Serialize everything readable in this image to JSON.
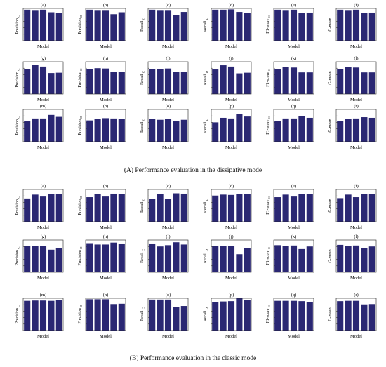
{
  "captions": {
    "A": "(A) Performance evaluation in  the dissipative mode",
    "B": "(B) Performance evaluation in the classic mode"
  },
  "bar_color": "#2a2773",
  "chart_data": [
    {
      "group": "A",
      "title": "(a)",
      "type": "bar",
      "xlabel": "Model",
      "ylabel": "Precision",
      "ylabel_sub": "C",
      "ylim": [
        0,
        1
      ],
      "values": [
        0.96,
        0.95,
        0.96,
        0.88,
        0.86
      ]
    },
    {
      "group": "A",
      "title": "(b)",
      "type": "bar",
      "xlabel": "Model",
      "ylabel": "Precision",
      "ylabel_sub": "D",
      "ylim": [
        0,
        1
      ],
      "values": [
        0.96,
        0.95,
        0.95,
        0.82,
        0.88
      ]
    },
    {
      "group": "A",
      "title": "(c)",
      "type": "bar",
      "xlabel": "Model",
      "ylabel": "Recall",
      "ylabel_sub": "C",
      "ylim": [
        0,
        1
      ],
      "values": [
        0.96,
        0.95,
        0.95,
        0.8,
        0.89
      ]
    },
    {
      "group": "A",
      "title": "(d)",
      "type": "bar",
      "xlabel": "Model",
      "ylabel": "Recall",
      "ylabel_sub": "D",
      "ylim": [
        0,
        1
      ],
      "values": [
        0.96,
        0.96,
        0.97,
        0.89,
        0.86
      ]
    },
    {
      "group": "A",
      "title": "(e)",
      "type": "bar",
      "xlabel": "Model",
      "ylabel": "F1-score",
      "ylabel_sub": "C",
      "ylim": [
        0,
        1
      ],
      "values": [
        0.96,
        0.95,
        0.96,
        0.85,
        0.87
      ]
    },
    {
      "group": "A",
      "title": "(f)",
      "type": "bar",
      "xlabel": "Model",
      "ylabel": "G-mean",
      "ylabel_sub": "",
      "ylim": [
        0,
        1
      ],
      "values": [
        0.96,
        0.95,
        0.96,
        0.85,
        0.87
      ]
    },
    {
      "group": "A",
      "title": "(g)",
      "type": "bar",
      "xlabel": "Model",
      "ylabel": "Precision",
      "ylabel_sub": "C",
      "ylim": [
        0,
        1
      ],
      "values": [
        0.78,
        0.9,
        0.85,
        0.65,
        0.66
      ]
    },
    {
      "group": "A",
      "title": "(h)",
      "type": "bar",
      "xlabel": "Model",
      "ylabel": "Precision",
      "ylabel_sub": "D",
      "ylim": [
        0,
        1
      ],
      "values": [
        0.78,
        0.8,
        0.79,
        0.69,
        0.68
      ]
    },
    {
      "group": "A",
      "title": "(i)",
      "type": "bar",
      "xlabel": "Model",
      "ylabel": "Recall",
      "ylabel_sub": "C",
      "ylim": [
        0,
        1
      ],
      "values": [
        0.78,
        0.78,
        0.79,
        0.68,
        0.68
      ]
    },
    {
      "group": "A",
      "title": "(j)",
      "type": "bar",
      "xlabel": "Model",
      "ylabel": "Recall",
      "ylabel_sub": "D",
      "ylim": [
        0,
        1
      ],
      "values": [
        0.76,
        0.89,
        0.85,
        0.64,
        0.66
      ]
    },
    {
      "group": "A",
      "title": "(k)",
      "type": "bar",
      "xlabel": "Model",
      "ylabel": "F1-score",
      "ylabel_sub": "C",
      "ylim": [
        0,
        1
      ],
      "values": [
        0.77,
        0.84,
        0.82,
        0.67,
        0.67
      ]
    },
    {
      "group": "A",
      "title": "(l)",
      "type": "bar",
      "xlabel": "Model",
      "ylabel": "G-mean",
      "ylabel_sub": "",
      "ylim": [
        0,
        1
      ],
      "values": [
        0.77,
        0.84,
        0.82,
        0.67,
        0.67
      ]
    },
    {
      "group": "A",
      "title": "(m)",
      "type": "bar",
      "xlabel": "Model",
      "ylabel": "Precision",
      "ylabel_sub": "C",
      "ylim": [
        0,
        1
      ],
      "values": [
        0.63,
        0.72,
        0.72,
        0.83,
        0.77
      ]
    },
    {
      "group": "A",
      "title": "(n)",
      "type": "bar",
      "xlabel": "Model",
      "ylabel": "Precision",
      "ylabel_sub": "D",
      "ylim": [
        0,
        1
      ],
      "values": [
        0.66,
        0.71,
        0.73,
        0.72,
        0.71
      ]
    },
    {
      "group": "A",
      "title": "(o)",
      "type": "bar",
      "xlabel": "Model",
      "ylabel": "Recall",
      "ylabel_sub": "C",
      "ylim": [
        0,
        1
      ],
      "values": [
        0.7,
        0.68,
        0.7,
        0.63,
        0.68
      ]
    },
    {
      "group": "A",
      "title": "(p)",
      "type": "bar",
      "xlabel": "Model",
      "ylabel": "Recall",
      "ylabel_sub": "D",
      "ylim": [
        0,
        1
      ],
      "values": [
        0.6,
        0.74,
        0.72,
        0.86,
        0.78
      ]
    },
    {
      "group": "A",
      "title": "(q)",
      "type": "bar",
      "xlabel": "Model",
      "ylabel": "F1-score",
      "ylabel_sub": "C",
      "ylim": [
        0,
        1
      ],
      "values": [
        0.64,
        0.72,
        0.72,
        0.8,
        0.74
      ]
    },
    {
      "group": "A",
      "title": "(r)",
      "type": "bar",
      "xlabel": "Model",
      "ylabel": "G-mean",
      "ylabel_sub": "",
      "ylim": [
        0,
        1
      ],
      "values": [
        0.64,
        0.71,
        0.72,
        0.76,
        0.74
      ]
    },
    {
      "group": "B",
      "title": "(a)",
      "type": "bar",
      "xlabel": "Model",
      "ylabel": "Precision",
      "ylabel_sub": "C",
      "ylim": [
        0,
        1
      ],
      "values": [
        0.72,
        0.84,
        0.78,
        0.85,
        0.86
      ]
    },
    {
      "group": "B",
      "title": "(b)",
      "type": "bar",
      "xlabel": "Model",
      "ylabel": "Precision",
      "ylabel_sub": "D",
      "ylim": [
        0,
        1
      ],
      "values": [
        0.76,
        0.85,
        0.78,
        0.87,
        0.86
      ]
    },
    {
      "group": "B",
      "title": "(c)",
      "type": "bar",
      "xlabel": "Model",
      "ylabel": "Recall",
      "ylabel_sub": "C",
      "ylim": [
        0,
        1
      ],
      "values": [
        0.7,
        0.85,
        0.7,
        0.88,
        0.87
      ]
    },
    {
      "group": "B",
      "title": "(d)",
      "type": "bar",
      "xlabel": "Model",
      "ylabel": "Recall",
      "ylabel_sub": "D",
      "ylim": [
        0,
        1
      ],
      "values": [
        0.81,
        0.84,
        0.83,
        0.85,
        0.86
      ]
    },
    {
      "group": "B",
      "title": "(e)",
      "type": "bar",
      "xlabel": "Model",
      "ylabel": "F1-score",
      "ylabel_sub": "C",
      "ylim": [
        0,
        1
      ],
      "values": [
        0.76,
        0.84,
        0.78,
        0.86,
        0.86
      ]
    },
    {
      "group": "B",
      "title": "(f)",
      "type": "bar",
      "xlabel": "Model",
      "ylabel": "G-mean",
      "ylabel_sub": "",
      "ylim": [
        0,
        1
      ],
      "values": [
        0.73,
        0.84,
        0.76,
        0.86,
        0.86
      ]
    },
    {
      "group": "B",
      "title": "(g)",
      "type": "bar",
      "xlabel": "Model",
      "ylabel": "Precision",
      "ylabel_sub": "C",
      "ylim": [
        0,
        1
      ],
      "values": [
        0.82,
        0.81,
        0.82,
        0.7,
        0.76
      ]
    },
    {
      "group": "B",
      "title": "(h)",
      "type": "bar",
      "xlabel": "Model",
      "ylabel": "Precision",
      "ylabel_sub": "D",
      "ylim": [
        0,
        1
      ],
      "values": [
        0.88,
        0.86,
        0.86,
        0.92,
        0.87
      ]
    },
    {
      "group": "B",
      "title": "(i)",
      "type": "bar",
      "xlabel": "Model",
      "ylabel": "Recall",
      "ylabel_sub": "C",
      "ylim": [
        0,
        1
      ],
      "values": [
        0.87,
        0.8,
        0.84,
        0.93,
        0.86
      ]
    },
    {
      "group": "B",
      "title": "(j)",
      "type": "bar",
      "xlabel": "Model",
      "ylabel": "Recall",
      "ylabel_sub": "D",
      "ylim": [
        0,
        1
      ],
      "values": [
        0.82,
        0.82,
        0.82,
        0.56,
        0.76
      ]
    },
    {
      "group": "B",
      "title": "(k)",
      "type": "bar",
      "xlabel": "Model",
      "ylabel": "F1-score",
      "ylabel_sub": "C",
      "ylim": [
        0,
        1
      ],
      "values": [
        0.84,
        0.82,
        0.83,
        0.72,
        0.8
      ]
    },
    {
      "group": "B",
      "title": "(l)",
      "type": "bar",
      "xlabel": "Model",
      "ylabel": "G-mean",
      "ylabel_sub": "",
      "ylim": [
        0,
        1
      ],
      "values": [
        0.85,
        0.82,
        0.83,
        0.74,
        0.8
      ]
    },
    {
      "group": "B",
      "title": "(m)",
      "type": "bar",
      "xlabel": "Model",
      "ylabel": "Precision",
      "ylabel_sub": "C",
      "ylim": [
        0,
        1
      ],
      "values": [
        0.92,
        0.93,
        0.93,
        0.92,
        0.95
      ]
    },
    {
      "group": "B",
      "title": "(n)",
      "type": "bar",
      "xlabel": "Model",
      "ylabel": "Precision",
      "ylabel_sub": "D",
      "ylim": [
        0,
        1
      ],
      "values": [
        0.97,
        0.97,
        0.97,
        0.82,
        0.83
      ]
    },
    {
      "group": "B",
      "title": "(o)",
      "type": "bar",
      "xlabel": "Model",
      "ylabel": "Recall",
      "ylabel_sub": "C",
      "ylim": [
        0,
        1
      ],
      "values": [
        0.96,
        0.96,
        0.96,
        0.72,
        0.76
      ]
    },
    {
      "group": "B",
      "title": "(p)",
      "type": "bar",
      "xlabel": "Model",
      "ylabel": "Recall",
      "ylabel_sub": "D",
      "ylim": [
        0,
        1
      ],
      "values": [
        0.89,
        0.9,
        0.91,
        1.0,
        0.94
      ]
    },
    {
      "group": "B",
      "title": "(q)",
      "type": "bar",
      "xlabel": "Model",
      "ylabel": "F1-score",
      "ylabel_sub": "C",
      "ylim": [
        0,
        1
      ],
      "values": [
        0.92,
        0.92,
        0.92,
        0.91,
        0.89
      ]
    },
    {
      "group": "B",
      "title": "(r)",
      "type": "bar",
      "xlabel": "Model",
      "ylabel": "G-mean",
      "ylabel_sub": "",
      "ylim": [
        0,
        1
      ],
      "values": [
        0.91,
        0.92,
        0.92,
        0.81,
        0.82
      ]
    }
  ]
}
